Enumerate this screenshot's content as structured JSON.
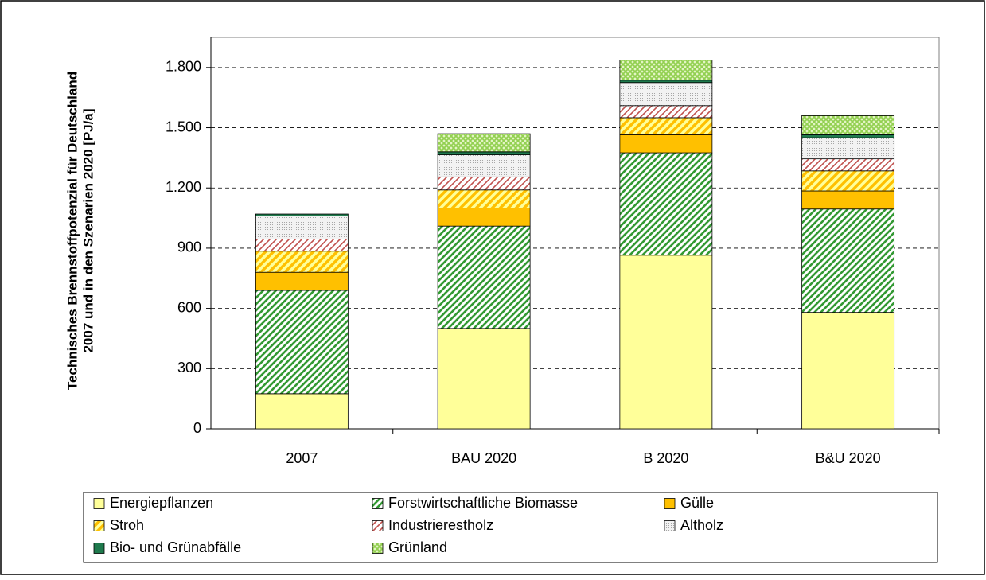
{
  "chart_data": {
    "type": "stacked_bar",
    "ylabel": [
      "Technisches Brennstoffpotenzial für Deutschland",
      "2007 und in den Szenarien 2020 [PJ/a]"
    ],
    "categories": [
      "2007",
      "BAU 2020",
      "B 2020",
      "B&U 2020"
    ],
    "series": [
      {
        "name": "Energiepflanzen",
        "color": "#ffff99",
        "pattern": "solid",
        "values": [
          175,
          500,
          865,
          580
        ]
      },
      {
        "name": "Forstwirtschaftliche Biomasse",
        "color": "#339933",
        "pattern": "diagonal",
        "values": [
          515,
          510,
          510,
          515
        ]
      },
      {
        "name": "Gülle",
        "color": "#ffc000",
        "pattern": "solid",
        "values": [
          90,
          90,
          90,
          90
        ]
      },
      {
        "name": "Stroh",
        "color": "#ffc000",
        "pattern": "wide-diagonal",
        "values": [
          105,
          90,
          85,
          100
        ]
      },
      {
        "name": "Industrierestholz",
        "color": "#c0504d",
        "pattern": "cross-diagonal",
        "values": [
          60,
          65,
          60,
          60
        ]
      },
      {
        "name": "Altholz",
        "color": "#a6a6a6",
        "pattern": "dots",
        "values": [
          115,
          110,
          115,
          105
        ]
      },
      {
        "name": "Bio- und Grünabfälle",
        "color": "#1f7a4d",
        "pattern": "solid",
        "values": [
          10,
          15,
          12,
          15
        ]
      },
      {
        "name": "Grünland",
        "color": "#92d050",
        "pattern": "crosshatch",
        "values": [
          0,
          90,
          100,
          95
        ]
      }
    ],
    "ylim": [
      0,
      1950
    ],
    "yticks": [
      0,
      300,
      600,
      900,
      {
        "value": 1200,
        "label": "1.200"
      },
      {
        "value": 1500,
        "label": "1.500"
      },
      {
        "value": 1800,
        "label": "1.800"
      }
    ],
    "grid": true
  }
}
